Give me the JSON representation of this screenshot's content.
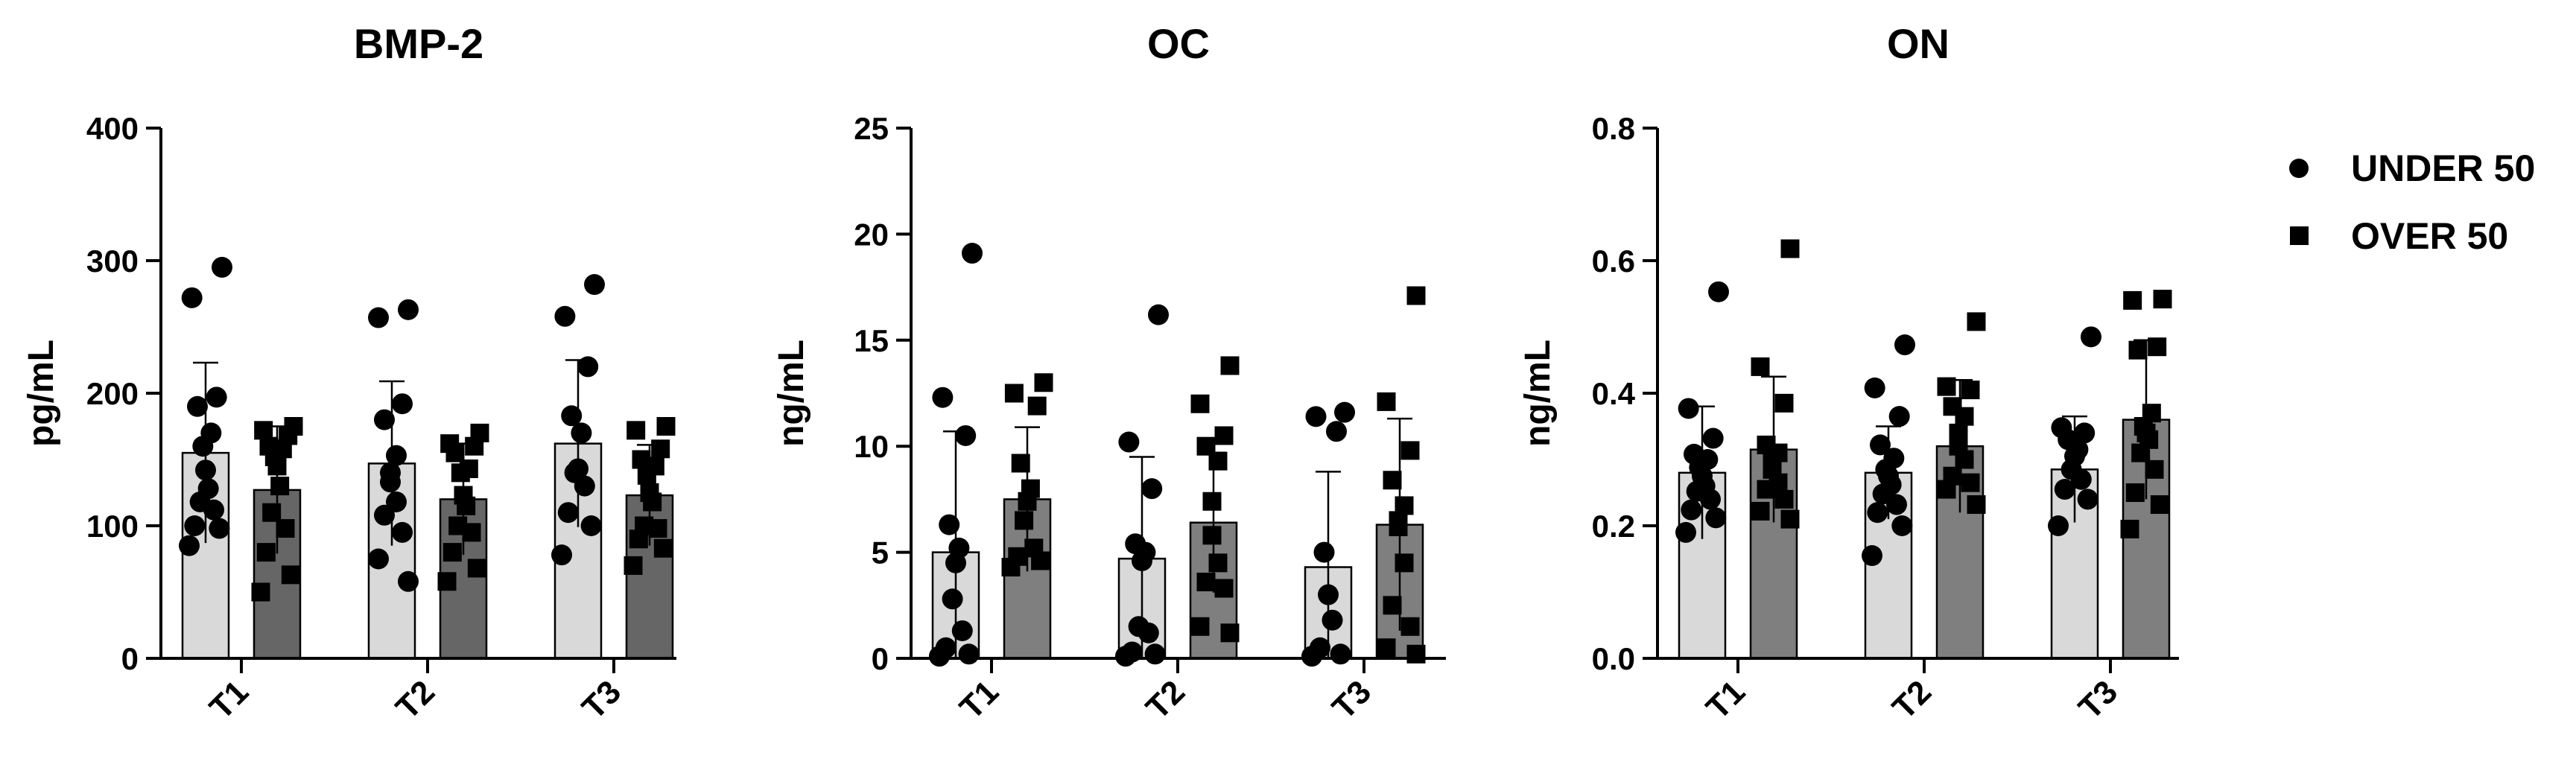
{
  "legend": {
    "items": [
      {
        "label": "UNDER 50",
        "marker": "circle-icon"
      },
      {
        "label": "OVER 50",
        "marker": "square-icon"
      }
    ]
  },
  "colors": {
    "under50_bar": "#d9d9d9",
    "bmp2_over50_bar": "#666666",
    "oc_on_over50_bar": "#7f7f7f",
    "marker": "#000000"
  },
  "chart_data": [
    {
      "type": "bar",
      "title": "BMP-2",
      "ylabel": "pg/mL",
      "categories": [
        "T1",
        "T2",
        "T3"
      ],
      "ylim": [
        0,
        400
      ],
      "yticks": [
        "0",
        "100",
        "200",
        "300",
        "400"
      ],
      "series": [
        {
          "name": "UNDER 50",
          "values": [
            155,
            147,
            162
          ],
          "sd": [
            68,
            62,
            63
          ],
          "points": [
            [
              295,
              272,
              197,
              190,
              170,
              160,
              142,
              128,
              118,
              112,
              100,
              98,
              85
            ],
            [
              263,
              257,
              192,
              180,
              153,
              140,
              133,
              118,
              108,
              95,
              75,
              58
            ],
            [
              282,
              258,
              220,
              183,
              170,
              143,
              140,
              130,
              110,
              100,
              78
            ]
          ]
        },
        {
          "name": "OVER 50",
          "values": [
            127,
            120,
            123
          ],
          "sd": [
            48,
            42,
            38
          ],
          "points": [
            [
              175,
              172,
              168,
              160,
              158,
              152,
              145,
              130,
              110,
              98,
              80,
              63,
              50
            ],
            [
              170,
              162,
              160,
              155,
              143,
              140,
              123,
              115,
              100,
              95,
              80,
              68,
              58
            ],
            [
              175,
              172,
              158,
              150,
              145,
              138,
              125,
              118,
              100,
              98,
              90,
              83,
              70
            ]
          ]
        }
      ]
    },
    {
      "type": "bar",
      "title": "OC",
      "ylabel": "ng/mL",
      "categories": [
        "T1",
        "T2",
        "T3"
      ],
      "ylim": [
        0,
        25
      ],
      "yticks": [
        "0",
        "5",
        "10",
        "15",
        "20",
        "25"
      ],
      "series": [
        {
          "name": "UNDER 50",
          "values": [
            5.0,
            4.7,
            4.3
          ],
          "sd": [
            5.7,
            4.8,
            4.5
          ],
          "points": [
            [
              19.1,
              12.3,
              10.5,
              6.3,
              5.2,
              4.5,
              2.8,
              1.3,
              0.5,
              0.2,
              0.1
            ],
            [
              16.2,
              10.2,
              8.0,
              5.4,
              5.0,
              4.6,
              1.5,
              1.2,
              0.3,
              0.2,
              0.1
            ],
            [
              11.6,
              11.4,
              10.7,
              5.0,
              3.0,
              1.8,
              0.5,
              0.2,
              0.1
            ]
          ]
        },
        {
          "name": "OVER 50",
          "values": [
            7.5,
            6.4,
            6.3
          ],
          "sd": [
            3.4,
            3.3,
            5.0
          ],
          "points": [
            [
              13.0,
              12.5,
              11.9,
              9.2,
              8.0,
              7.4,
              6.5,
              5.2,
              4.8,
              4.6,
              4.3
            ],
            [
              13.8,
              12.0,
              10.5,
              10.0,
              9.3,
              7.4,
              5.8,
              4.5,
              3.6,
              3.3,
              1.5,
              1.2
            ],
            [
              17.1,
              12.1,
              9.8,
              8.4,
              7.2,
              6.5,
              6.2,
              4.5,
              2.5,
              1.5,
              0.5,
              0.2
            ]
          ]
        }
      ]
    },
    {
      "type": "bar",
      "title": "ON",
      "ylabel": "ng/mL",
      "categories": [
        "T1",
        "T2",
        "T3"
      ],
      "ylim": [
        0,
        0.8
      ],
      "yticks": [
        "0.0",
        "0.2",
        "0.4",
        "0.6",
        "0.8"
      ],
      "series": [
        {
          "name": "UNDER 50",
          "values": [
            0.28,
            0.28,
            0.285
          ],
          "sd": [
            0.1,
            0.07,
            0.08
          ],
          "points": [
            [
              0.553,
              0.377,
              0.332,
              0.308,
              0.3,
              0.288,
              0.275,
              0.26,
              0.252,
              0.24,
              0.224,
              0.212,
              0.19
            ],
            [
              0.473,
              0.408,
              0.365,
              0.322,
              0.302,
              0.285,
              0.275,
              0.262,
              0.248,
              0.232,
              0.22,
              0.2,
              0.155
            ],
            [
              0.485,
              0.348,
              0.34,
              0.33,
              0.315,
              0.305,
              0.285,
              0.27,
              0.255,
              0.24,
              0.2
            ]
          ]
        },
        {
          "name": "OVER 50",
          "values": [
            0.315,
            0.32,
            0.36
          ],
          "sd": [
            0.11,
            0.1,
            0.12
          ],
          "points": [
            [
              0.618,
              0.44,
              0.385,
              0.322,
              0.31,
              0.298,
              0.285,
              0.265,
              0.255,
              0.24,
              0.222,
              0.21
            ],
            [
              0.508,
              0.41,
              0.405,
              0.38,
              0.365,
              0.34,
              0.32,
              0.3,
              0.275,
              0.265,
              0.255,
              0.232
            ],
            [
              0.542,
              0.54,
              0.47,
              0.465,
              0.37,
              0.35,
              0.34,
              0.33,
              0.31,
              0.285,
              0.25,
              0.232,
              0.195
            ]
          ]
        }
      ]
    }
  ]
}
